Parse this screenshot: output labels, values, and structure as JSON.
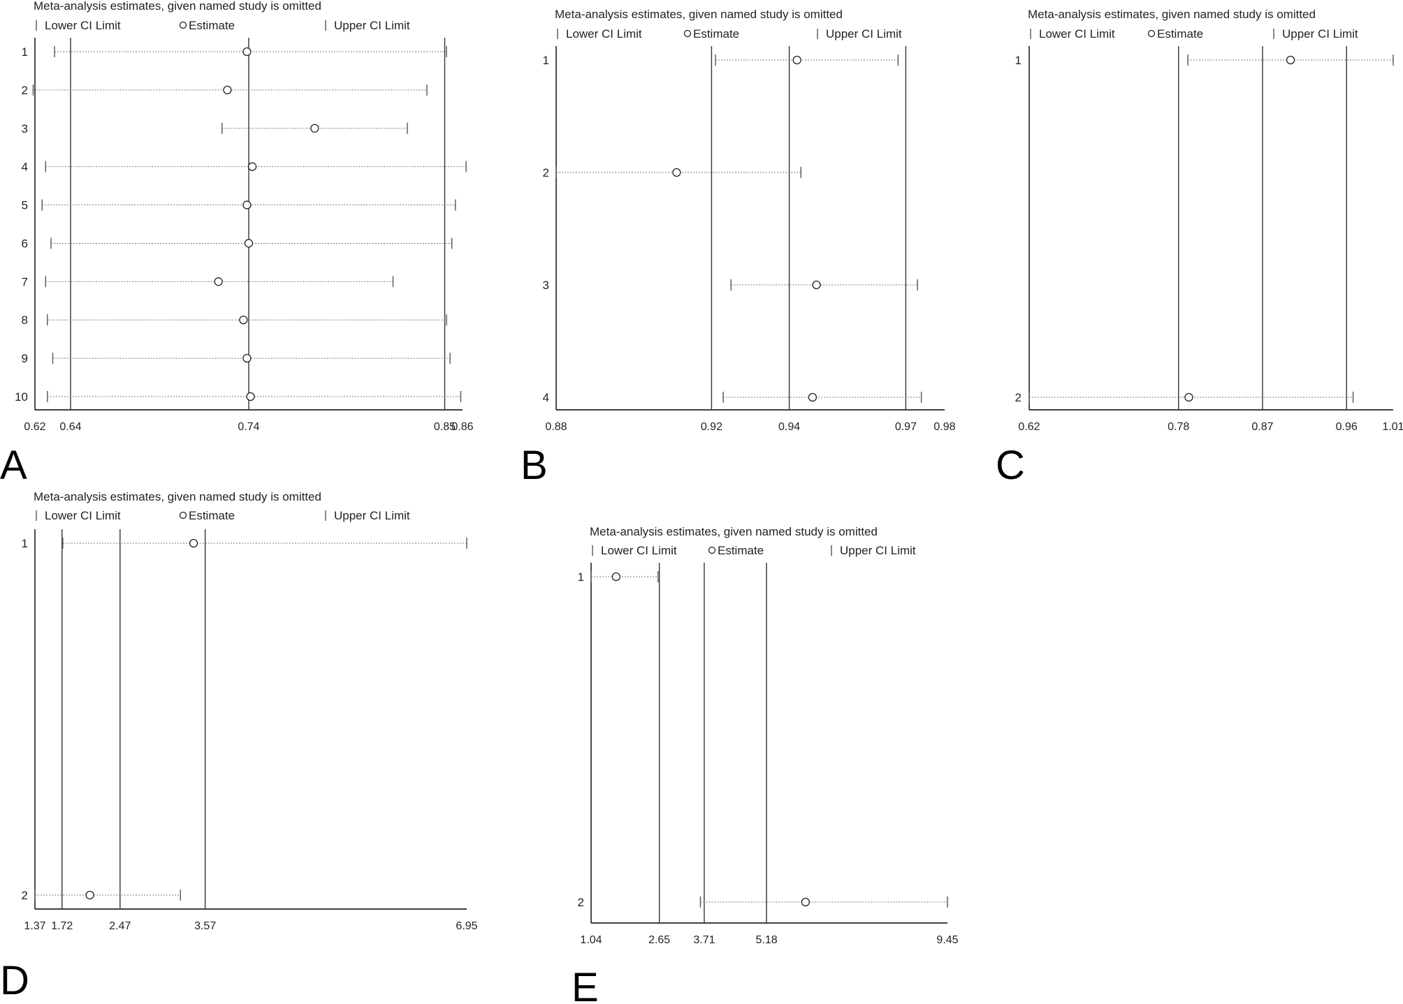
{
  "chart_data": [
    {
      "panel": "A",
      "type": "forest",
      "title": "Meta-analysis estimates, given named study is omitted",
      "legend": [
        "Lower CI Limit",
        "Estimate",
        "Upper CI Limit"
      ],
      "xlim": [
        0.62,
        0.86
      ],
      "xticks": [
        "0.62",
        "0.64",
        "0.74",
        "0.85",
        "0.86"
      ],
      "ref_lines": [
        0.64,
        0.74,
        0.85
      ],
      "studies": [
        "1",
        "2",
        "3",
        "4",
        "5",
        "6",
        "7",
        "8",
        "9",
        "10"
      ],
      "lower": [
        0.631,
        0.619,
        0.725,
        0.626,
        0.624,
        0.629,
        0.626,
        0.627,
        0.63,
        0.627
      ],
      "estimate": [
        0.739,
        0.728,
        0.777,
        0.742,
        0.739,
        0.74,
        0.723,
        0.737,
        0.739,
        0.741
      ],
      "upper": [
        0.851,
        0.84,
        0.829,
        0.862,
        0.856,
        0.854,
        0.821,
        0.851,
        0.853,
        0.859
      ]
    },
    {
      "panel": "B",
      "type": "forest",
      "title": "Meta-analysis estimates, given named study is omitted",
      "legend": [
        "Lower CI Limit",
        "Estimate",
        "Upper CI Limit"
      ],
      "xlim": [
        0.88,
        0.98
      ],
      "xticks": [
        "0.88",
        "0.92",
        "0.94",
        "0.97",
        "0.98"
      ],
      "ref_lines": [
        0.92,
        0.94,
        0.97
      ],
      "studies": [
        "1",
        "2",
        "3",
        "4"
      ],
      "lower": [
        0.921,
        0.88,
        0.925,
        0.923
      ],
      "estimate": [
        0.942,
        0.911,
        0.947,
        0.946
      ],
      "upper": [
        0.968,
        0.943,
        0.973,
        0.974
      ]
    },
    {
      "panel": "C",
      "type": "forest",
      "title": "Meta-analysis estimates, given named study is omitted",
      "legend": [
        "Lower CI Limit",
        "Estimate",
        "Upper CI Limit"
      ],
      "xlim": [
        0.62,
        1.01
      ],
      "xticks": [
        "0.62",
        "0.78",
        "0.87",
        "0.96",
        "1.01"
      ],
      "ref_lines": [
        0.78,
        0.87,
        0.96
      ],
      "studies": [
        "1",
        "2"
      ],
      "lower": [
        0.79,
        0.62
      ],
      "estimate": [
        0.9,
        0.791
      ],
      "upper": [
        1.01,
        0.967
      ]
    },
    {
      "panel": "D",
      "type": "forest",
      "title": "Meta-analysis estimates, given named study is omitted",
      "legend": [
        "Lower CI Limit",
        "Estimate",
        "Upper CI Limit"
      ],
      "xlim": [
        1.37,
        6.95
      ],
      "xticks": [
        "1.37",
        "1.72",
        "2.47",
        "3.57",
        "6.95"
      ],
      "ref_lines": [
        1.72,
        2.47,
        3.57
      ],
      "studies": [
        "1",
        "2"
      ],
      "lower": [
        1.73,
        1.37
      ],
      "estimate": [
        3.42,
        2.08
      ],
      "upper": [
        6.95,
        3.25
      ]
    },
    {
      "panel": "E",
      "type": "forest",
      "title": "Meta-analysis estimates, given named study is omitted",
      "legend": [
        "Lower CI Limit",
        "Estimate",
        "Upper CI Limit"
      ],
      "xlim": [
        1.04,
        9.45
      ],
      "xticks": [
        "1.04",
        "2.65",
        "3.71",
        "5.18",
        "9.45"
      ],
      "ref_lines": [
        2.65,
        3.71,
        5.18
      ],
      "studies": [
        "1",
        "2"
      ],
      "lower": [
        1.04,
        3.62
      ],
      "estimate": [
        1.63,
        6.1
      ],
      "upper": [
        2.62,
        9.45
      ]
    }
  ]
}
